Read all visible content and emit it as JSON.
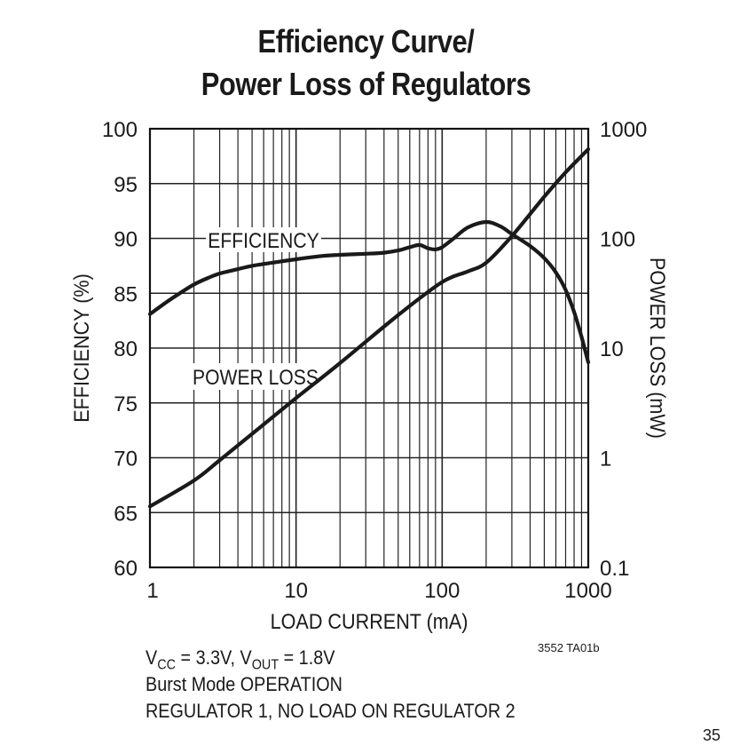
{
  "chart_data": {
    "type": "line",
    "title": [
      "Efficiency Curve/",
      "Power Loss of Regulators"
    ],
    "xlabel": "LOAD CURRENT (mA)",
    "ylabel_left": "EFFICIENCY (%)",
    "ylabel_right": "POWER LOSS (mW)",
    "x_scale": "log",
    "xlim": [
      1,
      1000
    ],
    "ylim_left": [
      60,
      100
    ],
    "ylim_right": [
      0.1,
      1000
    ],
    "y_right_scale": "log",
    "x_ticks": [
      "1",
      "10",
      "100",
      "1000"
    ],
    "y_left_ticks": [
      "60",
      "65",
      "70",
      "75",
      "80",
      "85",
      "90",
      "95",
      "100"
    ],
    "y_right_ticks": [
      "0.1",
      "1",
      "10",
      "100",
      "1000"
    ],
    "grid": true,
    "series": [
      {
        "name": "EFFICIENCY",
        "axis": "left",
        "points": [
          [
            1,
            83.1
          ],
          [
            1.3,
            84.2
          ],
          [
            1.6,
            85.0
          ],
          [
            2,
            85.8
          ],
          [
            2.5,
            86.4
          ],
          [
            3,
            86.8
          ],
          [
            4,
            87.2
          ],
          [
            5,
            87.5
          ],
          [
            7,
            87.8
          ],
          [
            10,
            88.1
          ],
          [
            15,
            88.4
          ],
          [
            20,
            88.5
          ],
          [
            30,
            88.6
          ],
          [
            40,
            88.7
          ],
          [
            50,
            88.9
          ],
          [
            60,
            89.2
          ],
          [
            70,
            89.4
          ],
          [
            80,
            89.1
          ],
          [
            90,
            89.0
          ],
          [
            100,
            89.2
          ],
          [
            120,
            90.0
          ],
          [
            150,
            91.0
          ],
          [
            200,
            91.5
          ],
          [
            250,
            91.1
          ],
          [
            300,
            90.4
          ],
          [
            400,
            89.3
          ],
          [
            500,
            88.2
          ],
          [
            600,
            86.9
          ],
          [
            700,
            85.3
          ],
          [
            800,
            83.3
          ],
          [
            900,
            81.0
          ],
          [
            1000,
            78.7
          ]
        ]
      },
      {
        "name": "POWER LOSS",
        "axis": "right",
        "points": [
          [
            1,
            0.36
          ],
          [
            2,
            0.62
          ],
          [
            3,
            0.95
          ],
          [
            5,
            1.65
          ],
          [
            10,
            3.5
          ],
          [
            20,
            7.3
          ],
          [
            50,
            20
          ],
          [
            100,
            40
          ],
          [
            150,
            50
          ],
          [
            200,
            60
          ],
          [
            300,
            105
          ],
          [
            500,
            240
          ],
          [
            700,
            400
          ],
          [
            1000,
            650
          ]
        ]
      }
    ],
    "annotations": [
      "EFFICIENCY",
      "POWER LOSS"
    ]
  },
  "footnote_code": "3552 TA01b",
  "notes": {
    "line1_vcc": "V",
    "line1_vcc_sub": "CC",
    "line1_mid": " = 3.3V, V",
    "line1_vout_sub": "OUT",
    "line1_end": " = 1.8V",
    "line2": "Burst Mode OPERATION",
    "line3": "REGULATOR 1, NO LOAD ON REGULATOR 2"
  },
  "page_corner": "35"
}
